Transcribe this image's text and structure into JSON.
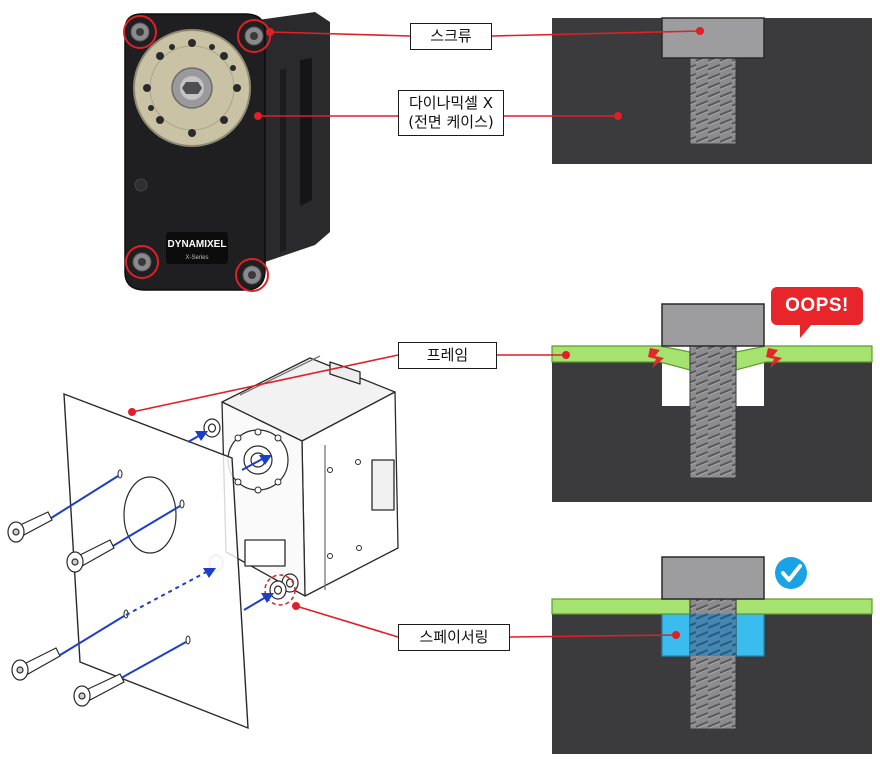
{
  "labels": {
    "screw": "스크류",
    "case_line1": "다이나믹셀 X",
    "case_line2": "(전면 케이스)",
    "frame": "프레임",
    "spacer_ring": "스페이서링",
    "oops": "OOPS!"
  },
  "device": {
    "brand": "DYNAMIXEL",
    "series": "X-Series"
  },
  "icons": [
    "check-icon",
    "warning-bolt-icon"
  ],
  "colors": {
    "callout_line": "#e01f26",
    "panel_dark": "#3b3b3d",
    "frame_green": "#a6e26f",
    "spacer_blue": "#3bbcef",
    "check_blue": "#1aa2e6",
    "oops_red": "#e8252a",
    "arrow_blue": "#1b3fc9"
  }
}
